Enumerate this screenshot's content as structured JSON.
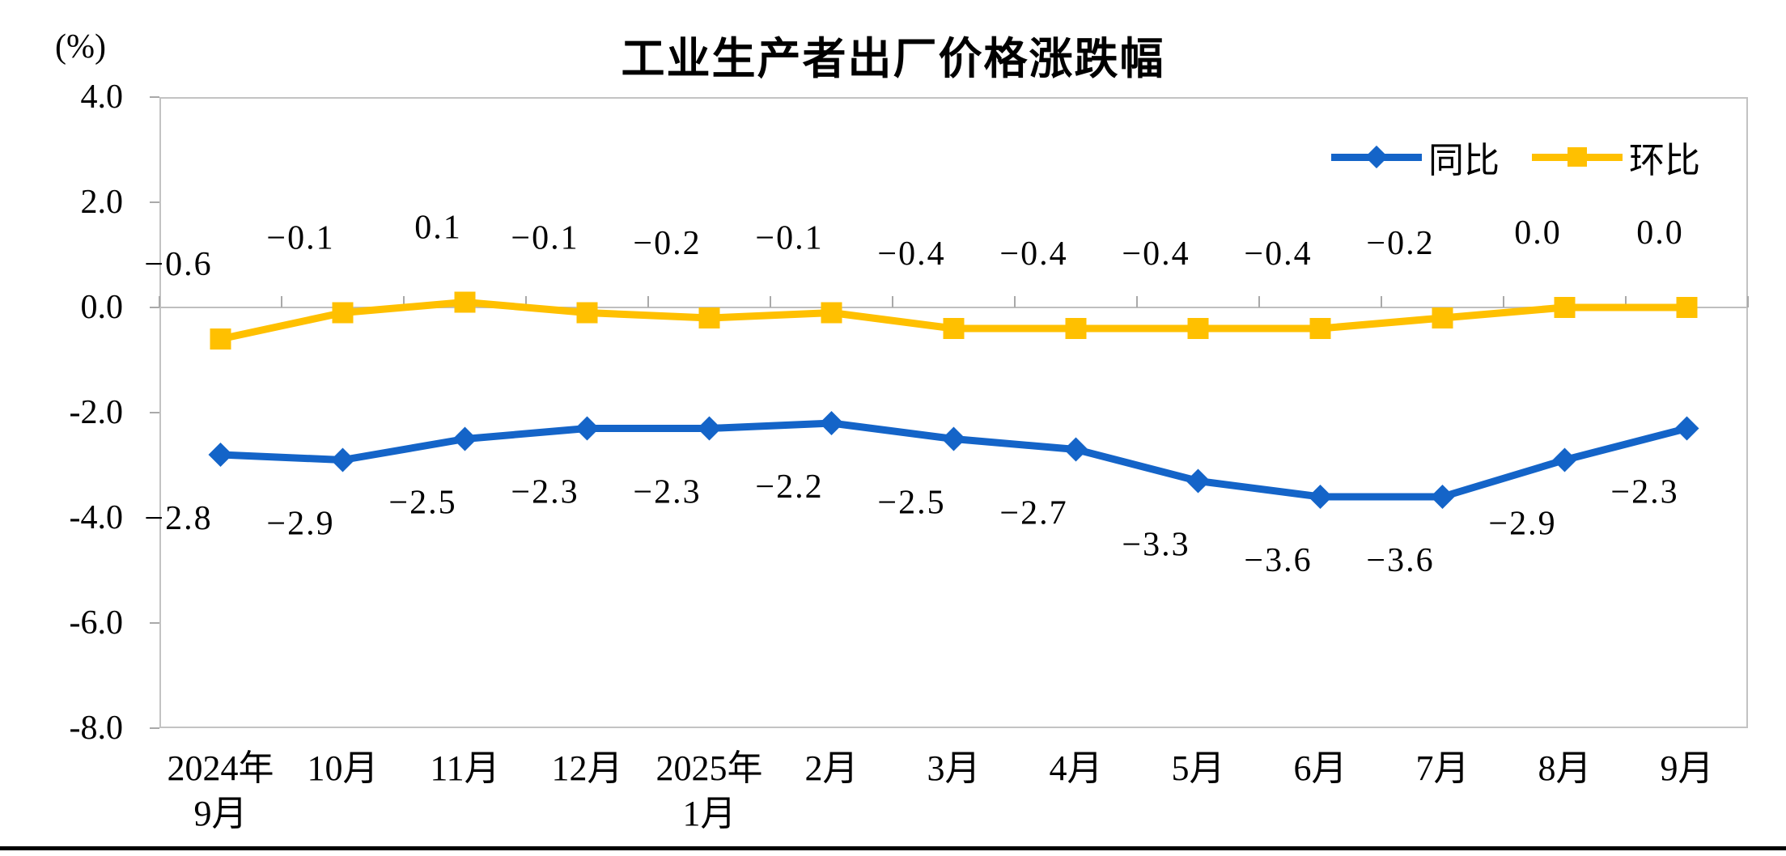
{
  "chart_data": {
    "type": "line",
    "title": "工业生产者出厂价格涨跌幅",
    "unit_label": "(%)",
    "x_axis": {
      "categories": [
        [
          "2024年",
          "9月"
        ],
        [
          "10月"
        ],
        [
          "11月"
        ],
        [
          "12月"
        ],
        [
          "2025年",
          "1月"
        ],
        [
          "2月"
        ],
        [
          "3月"
        ],
        [
          "4月"
        ],
        [
          "5月"
        ],
        [
          "6月"
        ],
        [
          "7月"
        ],
        [
          "8月"
        ],
        [
          "9月"
        ]
      ]
    },
    "y_axis": {
      "ticks": [
        "4.0",
        "2.0",
        "0.0",
        "-2.0",
        "-4.0",
        "-6.0",
        "-8.0"
      ],
      "min": -8.0,
      "max": 4.0,
      "step": 2.0
    },
    "series": [
      {
        "id": "tongbi",
        "name": "同比",
        "color": "#1464C8",
        "marker": "diamond",
        "label_position": "below",
        "values": [
          -2.8,
          -2.9,
          -2.5,
          -2.3,
          -2.3,
          -2.2,
          -2.5,
          -2.7,
          -3.3,
          -3.6,
          -3.6,
          -2.9,
          -2.3
        ],
        "labels": [
          "−2.8",
          "−2.9",
          "−2.5",
          "−2.3",
          "−2.3",
          "−2.2",
          "−2.5",
          "−2.7",
          "−3.3",
          "−3.6",
          "−3.6",
          "−2.9",
          "−2.3"
        ]
      },
      {
        "id": "huanbi",
        "name": "环比",
        "color": "#FFC000",
        "marker": "square",
        "label_position": "above",
        "values": [
          -0.6,
          -0.1,
          0.1,
          -0.1,
          -0.2,
          -0.1,
          -0.4,
          -0.4,
          -0.4,
          -0.4,
          -0.2,
          0.0,
          0.0
        ],
        "labels": [
          "−0.6",
          "−0.1",
          "0.1",
          "−0.1",
          "−0.2",
          "−0.1",
          "−0.4",
          "−0.4",
          "−0.4",
          "−0.4",
          "−0.2",
          "0.0",
          "0.0"
        ]
      }
    ],
    "legend": {
      "position": "top-right",
      "entries": [
        "同比",
        "环比"
      ]
    },
    "grid": "zero-line-only",
    "colors": {
      "axis": "#BFBFBF",
      "text": "#000000",
      "background": "#FFFFFF"
    }
  }
}
